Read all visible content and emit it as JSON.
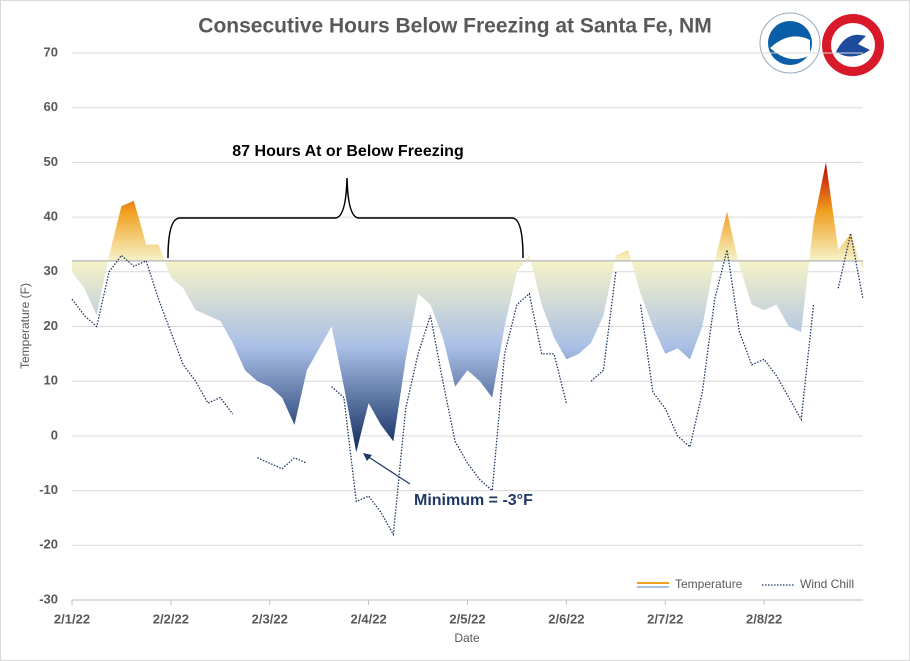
{
  "chart_data": {
    "type": "line",
    "title": "Consecutive Hours Below Freezing at Santa Fe, NM",
    "xlabel": "Date",
    "ylabel": "Temperature (F)",
    "xlim": [
      0,
      192
    ],
    "xticks": [
      {
        "value": 0,
        "label": "2/1/22"
      },
      {
        "value": 24,
        "label": "2/2/22"
      },
      {
        "value": 48,
        "label": "2/3/22"
      },
      {
        "value": 72,
        "label": "2/4/22"
      },
      {
        "value": 96,
        "label": "2/5/22"
      },
      {
        "value": 120,
        "label": "2/6/22"
      },
      {
        "value": 144,
        "label": "2/7/22"
      },
      {
        "value": 168,
        "label": "2/8/22"
      }
    ],
    "ylim": [
      -30,
      70
    ],
    "yticks": [
      -30,
      -20,
      -10,
      0,
      10,
      20,
      30,
      40,
      50,
      60,
      70
    ],
    "grid": true,
    "legend": "bottom-right",
    "fill_baseline": 32,
    "annotations": [
      "87 Hours At or Below Freezing",
      "Minimum = -3°F"
    ],
    "x": [
      0,
      3,
      6,
      9,
      12,
      15,
      18,
      21,
      24,
      27,
      30,
      33,
      36,
      39,
      42,
      45,
      48,
      51,
      54,
      57,
      60,
      63,
      66,
      69,
      72,
      75,
      78,
      81,
      84,
      87,
      90,
      93,
      96,
      99,
      102,
      105,
      108,
      111,
      114,
      117,
      120,
      123,
      126,
      129,
      132,
      135,
      138,
      141,
      144,
      147,
      150,
      153,
      156,
      159,
      162,
      165,
      168,
      171,
      174,
      177,
      180,
      183,
      186,
      189,
      192
    ],
    "series": [
      {
        "name": "Temperature",
        "colors": [
          "#c00000",
          "#f0a020",
          "#f6f3c8",
          "#a9bfe6",
          "#0d2a5e"
        ],
        "values": [
          30,
          27,
          22,
          33,
          42,
          43,
          35,
          35,
          29,
          27,
          23,
          22,
          21,
          17,
          12,
          10,
          9,
          7,
          2,
          12,
          16,
          20,
          9,
          -3,
          6,
          2,
          -1,
          14,
          26,
          24,
          18,
          9,
          12,
          10,
          7,
          20,
          30,
          33,
          24,
          18,
          14,
          15,
          17,
          22,
          33,
          34,
          26,
          20,
          15,
          16,
          14,
          20,
          32,
          41,
          31,
          24,
          23,
          24,
          20,
          19,
          39,
          50,
          34,
          37,
          30
        ]
      },
      {
        "name": "Wind Chill",
        "color": "#1f3864",
        "values": [
          25,
          22,
          20,
          30,
          33,
          31,
          32,
          25,
          19,
          13,
          10,
          6,
          7,
          4,
          null,
          -4,
          -5,
          -6,
          -4,
          -5,
          null,
          9,
          7,
          -12,
          -11,
          -14,
          -18,
          5,
          15,
          22,
          10,
          -1,
          -5,
          -8,
          -10,
          15,
          24,
          26,
          15,
          15,
          6,
          null,
          10,
          12,
          30,
          null,
          24,
          8,
          5,
          0,
          -2,
          8,
          25,
          34,
          19,
          13,
          14,
          11,
          7,
          3,
          24,
          null,
          27,
          37,
          25
        ]
      }
    ]
  }
}
